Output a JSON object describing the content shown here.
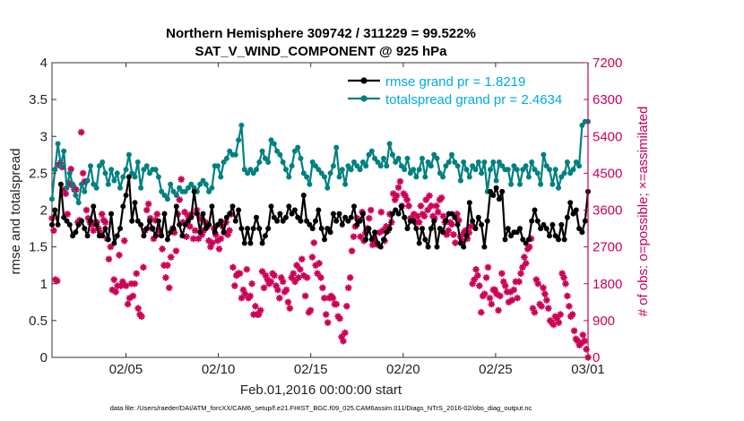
{
  "chart_data": {
    "type": "line",
    "title": "Northern Hemisphere 309742 / 311229 = 99.522%",
    "subtitle": "SAT_V_WIND_COMPONENT @ 925 hPa",
    "xlabel": "Feb.01,2016 00:00:00 start",
    "ylabel": "rmse and totalspread",
    "ylabel_right": "# of obs: o=possible; ×=assimilated",
    "footnote": "data file: /Users/raeder/DAI/ATM_forcXX/CAM6_setup/f.e21.FHIST_BGC.f09_025.CAM6assim.011/Diags_NTrS_2016-02/obs_diag_output.nc",
    "x_ticks": [
      "02/05",
      "02/10",
      "02/15",
      "02/20",
      "02/25",
      "03/01"
    ],
    "x_tick_days": [
      5,
      10,
      15,
      20,
      25,
      30
    ],
    "xlim": [
      1,
      30
    ],
    "ylim": [
      0,
      4
    ],
    "y_ticks": [
      "0",
      "0.5",
      "1",
      "1.5",
      "2",
      "2.5",
      "3",
      "3.5",
      "4"
    ],
    "ylim_right": [
      0,
      7200
    ],
    "y_ticks_right": [
      "0",
      "900",
      "1800",
      "2700",
      "3600",
      "4500",
      "5400",
      "6300",
      "7200"
    ],
    "grid": false,
    "legend_position": "top-right",
    "colors": {
      "rmse": "#000000",
      "spread": "#008080",
      "obs": "#cc0055",
      "right_axis": "#cc0055",
      "legend_text": "#00a9e6"
    },
    "series": [
      {
        "name": "rmse grand pr = 1.8219",
        "axis": "left",
        "values": [
          1.8,
          2.0,
          1.8,
          2.35,
          1.9,
          1.85,
          1.8,
          1.65,
          1.7,
          1.8,
          1.85,
          1.75,
          1.65,
          1.85,
          2.05,
          1.8,
          1.65,
          1.65,
          1.75,
          1.6,
          1.95,
          1.55,
          1.65,
          1.75,
          2.05,
          2.2,
          2.45,
          1.85,
          2.1,
          1.85,
          1.8,
          1.65,
          1.75,
          1.85,
          1.75,
          1.65,
          1.85,
          1.65,
          1.95,
          1.6,
          1.7,
          1.75,
          2.05,
          1.8,
          1.65,
          1.8,
          1.85,
          1.9,
          2.25,
          1.95,
          1.7,
          1.95,
          1.75,
          1.8,
          2.05,
          1.7,
          1.8,
          1.85,
          1.7,
          1.9,
          1.95,
          2.05,
          1.85,
          2.0,
          1.75,
          1.55,
          1.75,
          1.55,
          1.75,
          1.9,
          1.75,
          1.55,
          1.65,
          1.75,
          2.05,
          1.9,
          1.85,
          1.95,
          1.85,
          1.9,
          2.05,
          1.95,
          2.0,
          1.9,
          1.85,
          2.2,
          1.85,
          1.8,
          1.75,
          1.85,
          2.0,
          1.75,
          1.6,
          1.75,
          1.7,
          1.95,
          1.85,
          1.95,
          1.8,
          1.9,
          1.85,
          1.9,
          2.05,
          1.8,
          1.85,
          1.95,
          1.6,
          1.75,
          1.6,
          1.7,
          1.55,
          1.5,
          1.6,
          1.7,
          1.75,
          1.95,
          2.0,
          1.95,
          2.05,
          1.9,
          1.75,
          1.85,
          1.85,
          1.75,
          1.55,
          1.75,
          1.6,
          1.5,
          1.75,
          1.85,
          1.5,
          1.75,
          1.7,
          1.85,
          1.95,
          1.95,
          1.9,
          1.8,
          1.55,
          1.5,
          1.65,
          2.1,
          1.85,
          1.75,
          1.9,
          1.8,
          1.5,
          1.85,
          2.25,
          2.2,
          2.3,
          2.15,
          2.25,
          1.6,
          1.75,
          1.65,
          1.7,
          1.7,
          1.75,
          1.6,
          1.55,
          1.6,
          1.85,
          2.0,
          1.85,
          1.75,
          1.8,
          1.75,
          1.65,
          1.8,
          1.65,
          1.6,
          1.8,
          1.6,
          1.9,
          2.1,
          1.95,
          2.0,
          1.75,
          1.7,
          1.85,
          2.25
        ]
      },
      {
        "name": "totalspread grand pr = 2.4634",
        "axis": "left",
        "values": [
          2.15,
          2.55,
          2.9,
          2.6,
          2.8,
          2.3,
          2.5,
          2.35,
          2.2,
          2.1,
          2.35,
          2.25,
          2.4,
          2.6,
          2.35,
          2.3,
          2.6,
          2.65,
          2.5,
          2.35,
          2.55,
          2.4,
          2.5,
          2.3,
          2.45,
          2.55,
          2.75,
          2.5,
          2.45,
          2.65,
          2.3,
          2.55,
          2.6,
          2.5,
          2.55,
          2.55,
          2.45,
          2.25,
          2.2,
          2.15,
          2.35,
          2.25,
          2.2,
          2.3,
          2.25,
          2.25,
          2.3,
          2.35,
          2.3,
          2.25,
          2.35,
          2.4,
          2.35,
          2.25,
          2.3,
          2.6,
          2.6,
          2.45,
          2.65,
          2.7,
          2.8,
          2.75,
          2.75,
          2.95,
          3.15,
          2.55,
          2.5,
          2.55,
          2.5,
          2.55,
          2.65,
          2.8,
          2.7,
          2.65,
          2.95,
          2.9,
          2.8,
          2.75,
          2.65,
          2.55,
          2.45,
          2.6,
          2.8,
          2.85,
          2.7,
          2.5,
          2.45,
          2.35,
          2.65,
          2.6,
          2.55,
          2.5,
          2.45,
          2.3,
          2.5,
          2.6,
          2.85,
          2.45,
          2.55,
          2.35,
          2.6,
          2.55,
          2.65,
          2.6,
          2.55,
          2.65,
          2.6,
          2.75,
          2.8,
          2.7,
          2.65,
          2.6,
          2.7,
          2.6,
          2.9,
          2.75,
          2.65,
          2.7,
          2.6,
          2.55,
          2.7,
          2.5,
          2.55,
          2.45,
          2.55,
          2.7,
          2.45,
          2.65,
          2.6,
          2.75,
          2.7,
          2.5,
          2.45,
          2.6,
          2.65,
          2.75,
          2.65,
          2.6,
          2.4,
          2.65,
          2.55,
          2.45,
          2.6,
          2.55,
          2.65,
          2.5,
          2.65,
          2.25,
          2.55,
          2.65,
          2.4,
          2.65,
          2.6,
          2.55,
          2.55,
          2.35,
          2.6,
          2.55,
          2.35,
          2.55,
          2.6,
          2.45,
          2.65,
          2.55,
          2.5,
          2.35,
          2.75,
          2.6,
          2.55,
          2.35,
          2.55,
          2.3,
          2.45,
          2.5,
          2.65,
          2.5,
          2.55,
          2.65,
          2.6,
          3.15,
          3.2,
          3.2
        ]
      },
      {
        "name": "obs",
        "axis": "right",
        "values": [
          3400,
          3100,
          1900,
          1870,
          4700,
          4750,
          4650,
          4100,
          4000,
          3500,
          4250,
          4600,
          4200,
          4100,
          4100,
          3300,
          3350,
          5500,
          4500,
          4300,
          3600,
          3400,
          3300,
          3250,
          3100,
          3300,
          3300,
          3150,
          3050,
          3500,
          3350,
          3300,
          2900,
          2400,
          2700,
          1650,
          1900,
          1600,
          1750,
          2500,
          1750,
          1850,
          2850,
          1750,
          1300,
          1450,
          1800,
          1500,
          1800,
          2050,
          1200,
          1050,
          1000,
          2200,
          3100,
          3600,
          3750,
          3400,
          3150,
          2900,
          3350,
          3500,
          3100,
          3000,
          2650,
          2250,
          1950,
          2250,
          1700,
          2450,
          3150,
          3050,
          2600,
          3500,
          3850,
          4350,
          3300,
          3550,
          2950,
          3450,
          3200,
          3500,
          2900,
          3100,
          3600,
          2900,
          3400,
          3000,
          3100,
          3300,
          3200,
          2850,
          2700,
          2800,
          3150,
          3000,
          2850,
          2650,
          2900,
          3200,
          3050,
          3300,
          3000,
          3100,
          3500,
          2200,
          1750,
          2000,
          2050,
          2050,
          1450,
          1650,
          1550,
          2150,
          1450,
          1500,
          1800,
          1050,
          1250,
          1050,
          1050,
          1150,
          2100,
          1700,
          2000,
          1900,
          1800,
          1850,
          2050,
          2000,
          1750,
          1650,
          1450,
          1950,
          1850,
          1600,
          1650,
          1350,
          1200,
          1950,
          2050,
          1850,
          2250,
          1950,
          2150,
          2400,
          2000,
          1500,
          1950,
          1100,
          1150,
          2450,
          2800,
          2250,
          2050,
          2300,
          1950,
          1700,
          1450,
          1050,
          850,
          1450,
          1500,
          1450,
          1300,
          1300,
          1000,
          950,
          500,
          400,
          600,
          1250,
          1700,
          1950,
          2600,
          2950,
          3200,
          3400,
          3350,
          2950,
          3550,
          2850,
          3050,
          3150,
          3400,
          3600,
          2750,
          2900,
          2800,
          2750,
          3050,
          3550,
          3100,
          2850,
          3200,
          3100,
          3500,
          3300,
          4000,
          3850,
          3950,
          4150,
          4300,
          3700,
          4000,
          3950,
          3850,
          3700,
          3400,
          3350,
          3500,
          3300,
          3450,
          3300,
          3700,
          3500,
          3450,
          3850,
          3600,
          3950,
          3700,
          3450,
          3400,
          3700,
          3550,
          3850,
          3900,
          3450,
          3300,
          3000,
          3100,
          3300,
          3250,
          3000,
          2800,
          3500,
          3350,
          2950,
          2850,
          3050,
          3100,
          2900,
          3050,
          3200,
          1800,
          1900,
          2150,
          2000,
          1750,
          1100,
          1500,
          1550,
          1950,
          2200,
          1450,
          1300,
          1650,
          1650,
          1550,
          1150,
          1500,
          2050,
          1850,
          1750,
          1600,
          1350,
          1600,
          1400,
          1650,
          1850,
          1450,
          1850,
          2050,
          2200,
          2450,
          2300,
          2650,
          2700,
          2900,
          1200,
          1100,
          1900,
          1800,
          1300,
          1250,
          1700,
          1550,
          1400,
          1200,
          900,
          850,
          800,
          1000,
          950,
          850,
          1050,
          2050,
          1950,
          1800,
          1500,
          1250,
          1000,
          1050,
          650,
          450,
          400,
          300,
          350,
          550,
          400,
          200,
          0
        ]
      }
    ]
  }
}
